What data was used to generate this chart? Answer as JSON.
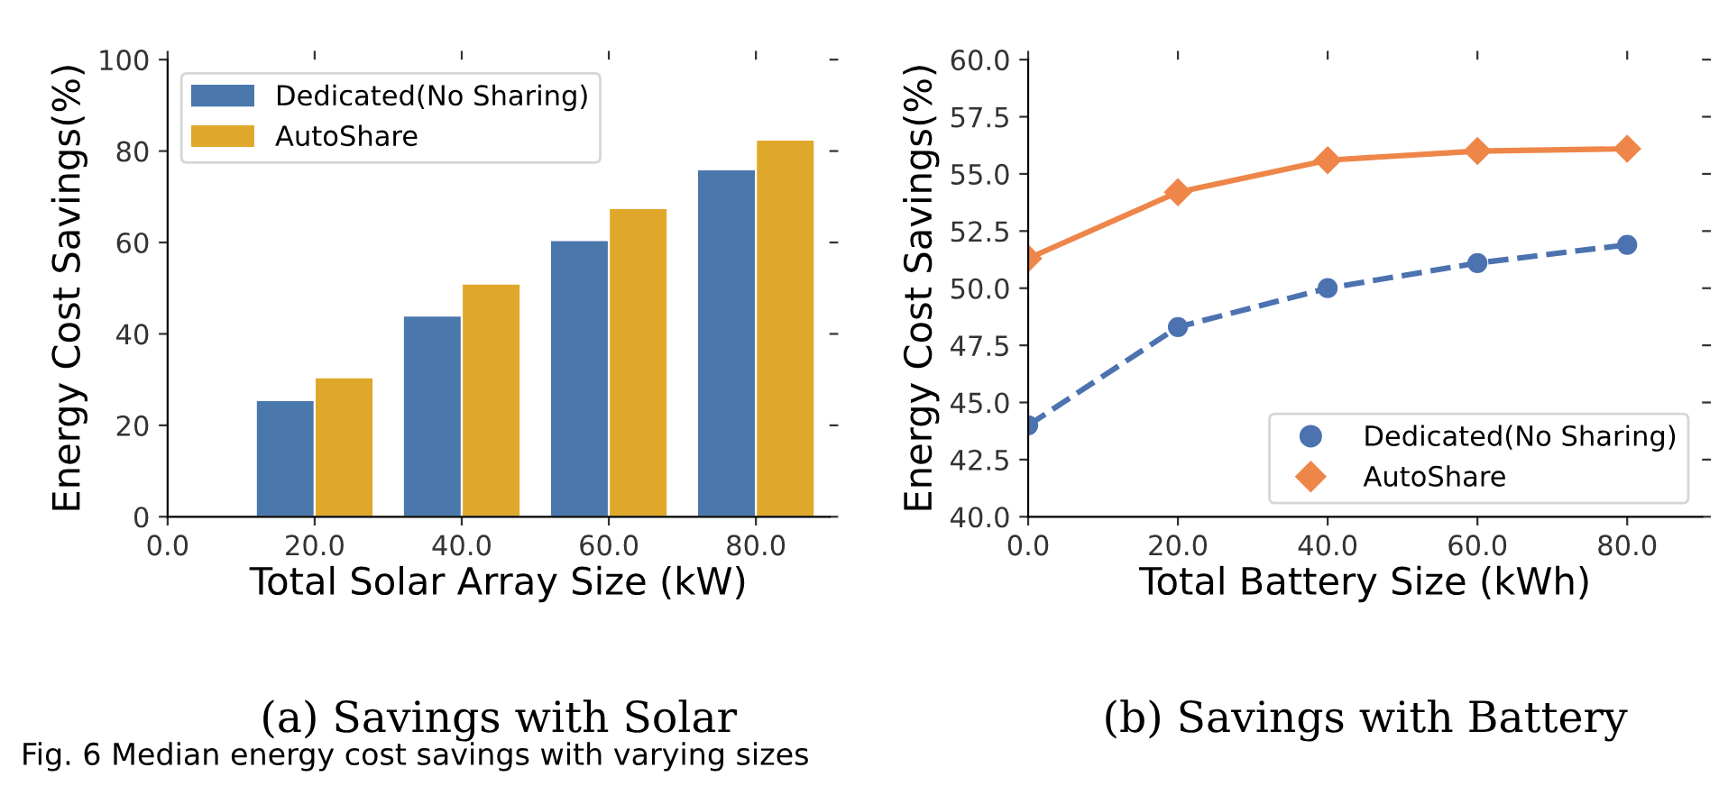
{
  "chart_data": [
    {
      "type": "bar",
      "subtitle": "(a) Savings with Solar",
      "xlabel": "Total Solar Array Size (kW)",
      "ylabel": "Energy Cost Savings(%)",
      "x": [
        20,
        40,
        60,
        80
      ],
      "series": [
        {
          "name": "Dedicated(No Sharing)",
          "color": "#4a78ad",
          "values": [
            25.5,
            44,
            60.5,
            76
          ]
        },
        {
          "name": "AutoShare",
          "color": "#e0a82a",
          "values": [
            30.5,
            51,
            67.5,
            82.5
          ]
        }
      ],
      "xlim": [
        0,
        90
      ],
      "xticks": [
        {
          "value": 0,
          "label": "0.0"
        },
        {
          "value": 20,
          "label": "20.0"
        },
        {
          "value": 40,
          "label": "40.0"
        },
        {
          "value": 60,
          "label": "60.0"
        },
        {
          "value": 80,
          "label": "80.0"
        }
      ],
      "ylim": [
        0,
        100
      ],
      "yticks": [
        0,
        20,
        40,
        60,
        80,
        100
      ],
      "legend": "top left",
      "grid": false,
      "annotations": [
        "Fig. 6 Median energy cost savings with varying sizes"
      ]
    },
    {
      "type": "line",
      "subtitle": "(b) Savings with Battery",
      "xlabel": "Total Battery Size (kWh)",
      "ylabel": "Energy Cost Savings(%)",
      "x": [
        0,
        20,
        40,
        60,
        80
      ],
      "series": [
        {
          "name": "Dedicated(No Sharing)",
          "color": "#4c72b0",
          "values": [
            44.0,
            48.3,
            50.0,
            51.1,
            51.9
          ],
          "marker": "circle",
          "line_style": "dashed"
        },
        {
          "name": "AutoShare",
          "color": "#ee8649",
          "values": [
            51.3,
            54.2,
            55.6,
            56.0,
            56.1
          ],
          "marker": "diamond",
          "line_style": "solid"
        }
      ],
      "xlim": [
        0,
        90
      ],
      "xticks": [
        {
          "value": 0,
          "label": "0.0"
        },
        {
          "value": 20,
          "label": "20.0"
        },
        {
          "value": 40,
          "label": "40.0"
        },
        {
          "value": 60,
          "label": "60.0"
        },
        {
          "value": 80,
          "label": "80.0"
        }
      ],
      "ylim": [
        40,
        60
      ],
      "yticks": [
        {
          "value": 40,
          "label": "40.0"
        },
        {
          "value": 42.5,
          "label": "42.5"
        },
        {
          "value": 45,
          "label": "45.0"
        },
        {
          "value": 47.5,
          "label": "47.5"
        },
        {
          "value": 50,
          "label": "50.0"
        },
        {
          "value": 52.5,
          "label": "52.5"
        },
        {
          "value": 55,
          "label": "55.0"
        },
        {
          "value": 57.5,
          "label": "57.5"
        },
        {
          "value": 60,
          "label": "60.0"
        }
      ],
      "legend": "bottom right",
      "grid": false
    }
  ]
}
